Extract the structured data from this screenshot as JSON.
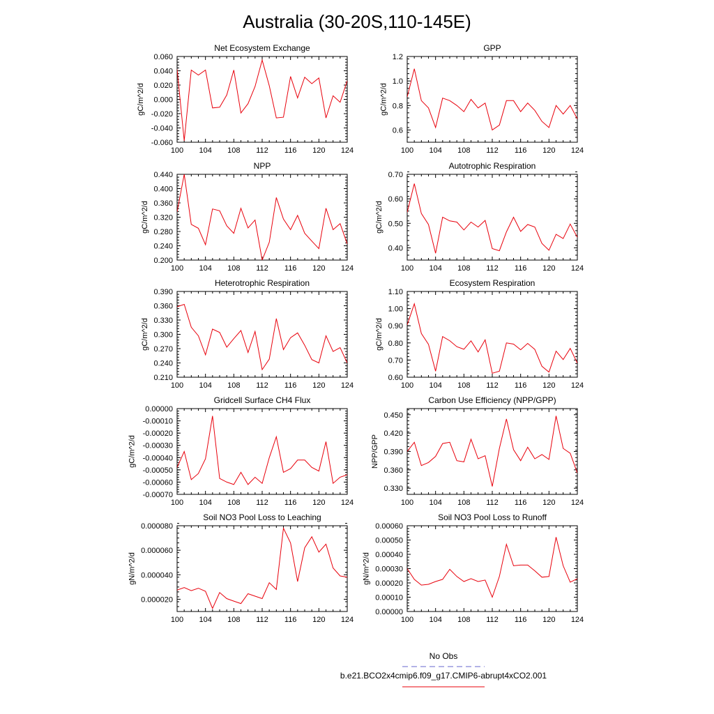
{
  "figure": {
    "title": "Australia (30-20S,110-145E)"
  },
  "legend": {
    "entries": [
      {
        "label": "No Obs",
        "color": "#6666cc",
        "style": "dashed"
      },
      {
        "label": "b.e21.BCO2x4cmip6.f09_g17.CMIP6-abrupt4xCO2.001",
        "color": "#e8000b",
        "style": "solid"
      }
    ]
  },
  "chart_data": [
    {
      "type": "line",
      "title": "Net Ecosystem Exchange",
      "ylabel": "gC/m^2/d",
      "xlim": [
        100,
        124
      ],
      "ylim": [
        -0.06,
        0.06
      ],
      "xticks": [
        "100",
        "104",
        "108",
        "112",
        "116",
        "120",
        "124"
      ],
      "yticks": [
        "-0.060",
        "-0.040",
        "-0.020",
        "0.000",
        "0.020",
        "0.040",
        "0.060"
      ],
      "series": [
        {
          "color": "#e8000b",
          "x": [
            100,
            101,
            102,
            103,
            104,
            105,
            106,
            107,
            108,
            109,
            110,
            111,
            112,
            113,
            114,
            115,
            116,
            117,
            118,
            119,
            120,
            121,
            122,
            123,
            124
          ],
          "values": [
            0.042,
            -0.058,
            0.041,
            0.034,
            0.041,
            -0.012,
            -0.011,
            0.006,
            0.041,
            -0.019,
            -0.006,
            0.018,
            0.055,
            0.019,
            -0.026,
            -0.025,
            0.032,
            0.002,
            0.031,
            0.022,
            0.03,
            -0.026,
            0.005,
            -0.004,
            0.026
          ]
        }
      ]
    },
    {
      "type": "line",
      "title": "GPP",
      "ylabel": "gC/m^2/d",
      "xlim": [
        100,
        124
      ],
      "ylim": [
        0.5,
        1.2
      ],
      "xticks": [
        "100",
        "104",
        "108",
        "112",
        "116",
        "120",
        "124"
      ],
      "yticks": [
        "0.6",
        "0.8",
        "1.0",
        "1.2"
      ],
      "series": [
        {
          "color": "#e8000b",
          "x": [
            100,
            101,
            102,
            103,
            104,
            105,
            106,
            107,
            108,
            109,
            110,
            111,
            112,
            113,
            114,
            115,
            116,
            117,
            118,
            119,
            120,
            121,
            122,
            123,
            124
          ],
          "values": [
            0.87,
            1.1,
            0.84,
            0.78,
            0.62,
            0.86,
            0.84,
            0.8,
            0.75,
            0.85,
            0.78,
            0.82,
            0.6,
            0.64,
            0.84,
            0.84,
            0.75,
            0.82,
            0.76,
            0.67,
            0.62,
            0.8,
            0.73,
            0.8,
            0.69
          ]
        }
      ]
    },
    {
      "type": "line",
      "title": "NPP",
      "ylabel": "gC/m^2/d",
      "xlim": [
        100,
        124
      ],
      "ylim": [
        0.2,
        0.44
      ],
      "xticks": [
        "100",
        "104",
        "108",
        "112",
        "116",
        "120",
        "124"
      ],
      "yticks": [
        "0.200",
        "0.240",
        "0.280",
        "0.320",
        "0.360",
        "0.400",
        "0.440"
      ],
      "series": [
        {
          "color": "#e8000b",
          "x": [
            100,
            101,
            102,
            103,
            104,
            105,
            106,
            107,
            108,
            109,
            110,
            111,
            112,
            113,
            114,
            115,
            116,
            117,
            118,
            119,
            120,
            121,
            122,
            123,
            124
          ],
          "values": [
            0.335,
            0.44,
            0.3,
            0.289,
            0.243,
            0.343,
            0.338,
            0.296,
            0.275,
            0.345,
            0.29,
            0.312,
            0.2,
            0.25,
            0.375,
            0.315,
            0.285,
            0.325,
            0.275,
            0.253,
            0.232,
            0.345,
            0.285,
            0.302,
            0.245
          ]
        }
      ]
    },
    {
      "type": "line",
      "title": "Autotrophic Respiration",
      "ylabel": "gC/m^2/d",
      "xlim": [
        100,
        124
      ],
      "ylim": [
        0.35,
        0.7
      ],
      "xticks": [
        "100",
        "104",
        "108",
        "112",
        "116",
        "120",
        "124"
      ],
      "yticks": [
        "0.40",
        "0.50",
        "0.60",
        "0.70"
      ],
      "series": [
        {
          "color": "#e8000b",
          "x": [
            100,
            101,
            102,
            103,
            104,
            105,
            106,
            107,
            108,
            109,
            110,
            111,
            112,
            113,
            114,
            115,
            116,
            117,
            118,
            119,
            120,
            121,
            122,
            123,
            124
          ],
          "values": [
            0.545,
            0.662,
            0.54,
            0.495,
            0.378,
            0.525,
            0.51,
            0.505,
            0.473,
            0.505,
            0.485,
            0.512,
            0.397,
            0.388,
            0.465,
            0.525,
            0.467,
            0.495,
            0.485,
            0.418,
            0.39,
            0.455,
            0.438,
            0.497,
            0.443
          ]
        }
      ]
    },
    {
      "type": "line",
      "title": "Heterotrophic Respiration",
      "ylabel": "gC/m^2/d",
      "xlim": [
        100,
        124
      ],
      "ylim": [
        0.21,
        0.39
      ],
      "xticks": [
        "100",
        "104",
        "108",
        "112",
        "116",
        "120",
        "124"
      ],
      "yticks": [
        "0.210",
        "0.240",
        "0.270",
        "0.300",
        "0.330",
        "0.360",
        "0.390"
      ],
      "series": [
        {
          "color": "#e8000b",
          "x": [
            100,
            101,
            102,
            103,
            104,
            105,
            106,
            107,
            108,
            109,
            110,
            111,
            112,
            113,
            114,
            115,
            116,
            117,
            118,
            119,
            120,
            121,
            122,
            123,
            124
          ],
          "values": [
            0.358,
            0.363,
            0.315,
            0.297,
            0.257,
            0.311,
            0.304,
            0.273,
            0.291,
            0.308,
            0.262,
            0.306,
            0.226,
            0.248,
            0.333,
            0.268,
            0.293,
            0.303,
            0.277,
            0.247,
            0.24,
            0.297,
            0.264,
            0.272,
            0.24
          ]
        }
      ]
    },
    {
      "type": "line",
      "title": "Ecosystem Respiration",
      "ylabel": "gC/m^2/d",
      "xlim": [
        100,
        124
      ],
      "ylim": [
        0.6,
        1.1
      ],
      "xticks": [
        "100",
        "104",
        "108",
        "112",
        "116",
        "120",
        "124"
      ],
      "yticks": [
        "0.60",
        "0.70",
        "0.80",
        "0.90",
        "1.00",
        "1.10"
      ],
      "series": [
        {
          "color": "#e8000b",
          "x": [
            100,
            101,
            102,
            103,
            104,
            105,
            106,
            107,
            108,
            109,
            110,
            111,
            112,
            113,
            114,
            115,
            116,
            117,
            118,
            119,
            120,
            121,
            122,
            123,
            124
          ],
          "values": [
            0.905,
            1.028,
            0.855,
            0.792,
            0.635,
            0.837,
            0.813,
            0.778,
            0.763,
            0.812,
            0.747,
            0.818,
            0.623,
            0.635,
            0.8,
            0.793,
            0.76,
            0.797,
            0.762,
            0.664,
            0.63,
            0.752,
            0.703,
            0.768,
            0.682
          ]
        }
      ]
    },
    {
      "type": "line",
      "title": "Gridcell Surface CH4 Flux",
      "ylabel": "gC/m^2/d",
      "xlim": [
        100,
        124
      ],
      "ylim": [
        -0.0007,
        0.0
      ],
      "xticks": [
        "100",
        "104",
        "108",
        "112",
        "116",
        "120",
        "124"
      ],
      "yticks": [
        "-0.00070",
        "-0.00060",
        "-0.00050",
        "-0.00040",
        "-0.00030",
        "-0.00020",
        "-0.00010",
        "0.00000"
      ],
      "series": [
        {
          "color": "#e8000b",
          "x": [
            100,
            101,
            102,
            103,
            104,
            105,
            106,
            107,
            108,
            109,
            110,
            111,
            112,
            113,
            114,
            115,
            116,
            117,
            118,
            119,
            120,
            121,
            122,
            123,
            124
          ],
          "values": [
            -0.00048,
            -0.00035,
            -0.00058,
            -0.00053,
            -0.00041,
            -6e-05,
            -0.00057,
            -0.0006,
            -0.00062,
            -0.00052,
            -0.00062,
            -0.00056,
            -0.00061,
            -0.0004,
            -0.00023,
            -0.00052,
            -0.00049,
            -0.00042,
            -0.00042,
            -0.00048,
            -0.00051,
            -0.00027,
            -0.00061,
            -0.00056,
            -0.00054
          ]
        }
      ]
    },
    {
      "type": "line",
      "title": "Carbon Use Efficiency (NPP/GPP)",
      "ylabel": "NPP/GPP",
      "xlim": [
        100,
        124
      ],
      "ylim": [
        0.32,
        0.46
      ],
      "xticks": [
        "100",
        "104",
        "108",
        "112",
        "116",
        "120",
        "124"
      ],
      "yticks": [
        "0.330",
        "0.360",
        "0.390",
        "0.420",
        "0.450"
      ],
      "series": [
        {
          "color": "#e8000b",
          "x": [
            100,
            101,
            102,
            103,
            104,
            105,
            106,
            107,
            108,
            109,
            110,
            111,
            112,
            113,
            114,
            115,
            116,
            117,
            118,
            119,
            120,
            121,
            122,
            123,
            124
          ],
          "values": [
            0.39,
            0.405,
            0.367,
            0.372,
            0.382,
            0.403,
            0.405,
            0.375,
            0.373,
            0.41,
            0.378,
            0.383,
            0.333,
            0.395,
            0.443,
            0.393,
            0.375,
            0.397,
            0.378,
            0.385,
            0.377,
            0.448,
            0.395,
            0.387,
            0.355
          ]
        }
      ]
    },
    {
      "type": "line",
      "title": "Soil NO3 Pool Loss to Leaching",
      "ylabel": "gN/m^2/d",
      "xlim": [
        100,
        124
      ],
      "ylim": [
        1e-05,
        8e-05
      ],
      "xticks": [
        "100",
        "104",
        "108",
        "112",
        "116",
        "120",
        "124"
      ],
      "yticks": [
        "0.000020",
        "0.000040",
        "0.000060",
        "0.000080"
      ],
      "series": [
        {
          "color": "#e8000b",
          "x": [
            100,
            101,
            102,
            103,
            104,
            105,
            106,
            107,
            108,
            109,
            110,
            111,
            112,
            113,
            114,
            115,
            116,
            117,
            118,
            119,
            120,
            121,
            122,
            123,
            124
          ],
          "values": [
            2.75e-05,
            2.95e-05,
            2.7e-05,
            2.9e-05,
            2.65e-05,
            1.25e-05,
            2.55e-05,
            2.05e-05,
            1.85e-05,
            1.65e-05,
            2.45e-05,
            2.25e-05,
            2.05e-05,
            3.35e-05,
            2.8e-05,
            7.8e-05,
            6.6e-05,
            3.45e-05,
            6.2e-05,
            7.1e-05,
            5.85e-05,
            6.5e-05,
            4.55e-05,
            3.9e-05,
            3.8e-05
          ]
        }
      ]
    },
    {
      "type": "line",
      "title": "Soil NO3 Pool Loss to Runoff",
      "ylabel": "gN/m^2/d",
      "xlim": [
        100,
        124
      ],
      "ylim": [
        0.0,
        0.0006
      ],
      "xticks": [
        "100",
        "104",
        "108",
        "112",
        "116",
        "120",
        "124"
      ],
      "yticks": [
        "0.00000",
        "0.00010",
        "0.00020",
        "0.00030",
        "0.00040",
        "0.00050",
        "0.00060"
      ],
      "series": [
        {
          "color": "#e8000b",
          "x": [
            100,
            101,
            102,
            103,
            104,
            105,
            106,
            107,
            108,
            109,
            110,
            111,
            112,
            113,
            114,
            115,
            116,
            117,
            118,
            119,
            120,
            121,
            122,
            123,
            124
          ],
          "values": [
            0.0003,
            0.000225,
            0.000185,
            0.00019,
            0.00021,
            0.000225,
            0.000295,
            0.000245,
            0.00021,
            0.00023,
            0.00021,
            0.00022,
            0.0001,
            0.000245,
            0.00047,
            0.00032,
            0.000325,
            0.000325,
            0.000285,
            0.00024,
            0.000245,
            0.00052,
            0.00032,
            0.000205,
            0.00023
          ]
        }
      ]
    }
  ]
}
